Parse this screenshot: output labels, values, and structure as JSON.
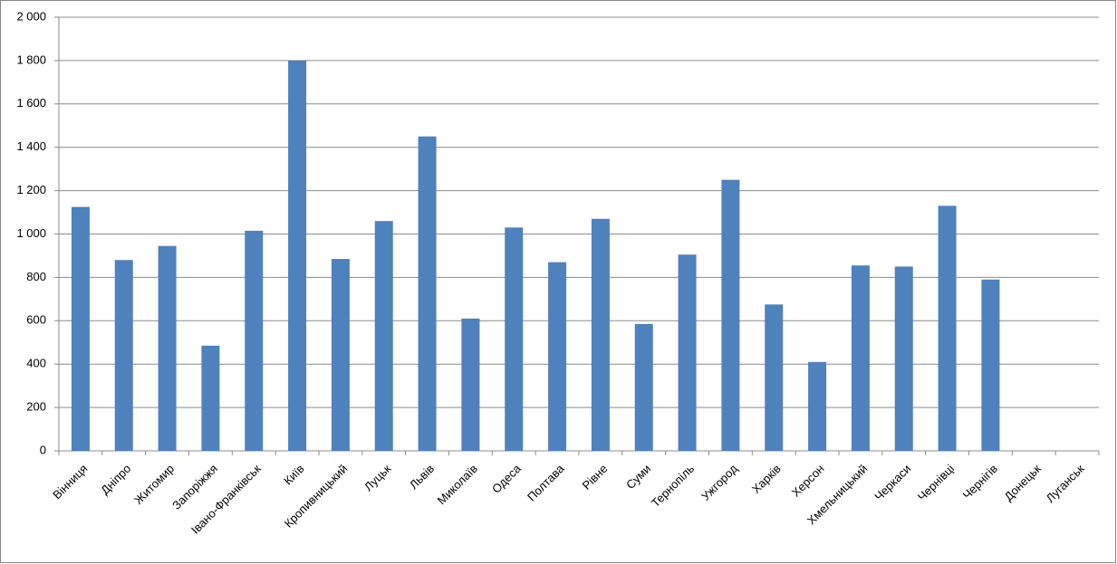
{
  "chart_data": {
    "type": "bar",
    "categories": [
      "Вінниця",
      "Дніпро",
      "Житомир",
      "Запоріжжя",
      "Івано-Франківськ",
      "Київ",
      "Кропивницький",
      "Луцьк",
      "Львів",
      "Миколаїв",
      "Одеса",
      "Полтава",
      "Рівне",
      "Суми",
      "Тернопіль",
      "Ужгород",
      "Харків",
      "Херсон",
      "Хмельницький",
      "Черкаси",
      "Чернівці",
      "Чернігів",
      "Донецьк",
      "Луганськ"
    ],
    "values": [
      1125,
      880,
      945,
      485,
      1015,
      1800,
      885,
      1060,
      1450,
      610,
      1030,
      870,
      1070,
      585,
      905,
      1250,
      675,
      410,
      855,
      850,
      1130,
      790,
      null,
      null
    ],
    "color": "#4f81bd",
    "ylim": [
      0,
      2000
    ],
    "yticks": [
      0,
      200,
      400,
      600,
      800,
      {
        "value": 1000,
        "label": "1 000"
      },
      {
        "value": 1200,
        "label": "1 200"
      },
      {
        "value": 1400,
        "label": "1 400"
      },
      {
        "value": 1600,
        "label": "1 600"
      },
      {
        "value": 1800,
        "label": "1 800"
      },
      {
        "value": 2000,
        "label": "2 000"
      }
    ],
    "grid": true
  }
}
